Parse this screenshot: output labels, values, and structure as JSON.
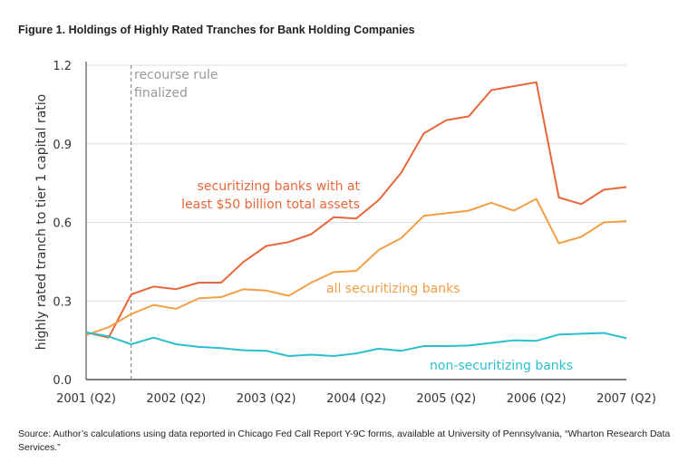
{
  "title": "Figure 1. Holdings of Highly Rated Tranches for Bank Holding Companies",
  "source": "Source: Author’s calculations using data reported in Chicago Fed Call Report Y-9C forms, available at University of Pennsylvania, “Wharton Research Data Services.”",
  "chart_data": {
    "type": "line",
    "ylabel": "highly rated tranch to tier 1 capital ratio",
    "xlabel": "",
    "ylim": [
      0,
      1.2
    ],
    "yticks": [
      "0.0",
      "0.3",
      "0.6",
      "0.9",
      "1.2"
    ],
    "xticks": [
      "2001 (Q2)",
      "2002 (Q2)",
      "2003 (Q2)",
      "2004 (Q2)",
      "2005 (Q2)",
      "2006 (Q2)",
      "2007 (Q2)"
    ],
    "x": [
      "2001Q2",
      "2001Q3",
      "2001Q4",
      "2002Q1",
      "2002Q2",
      "2002Q3",
      "2002Q4",
      "2003Q1",
      "2003Q2",
      "2003Q3",
      "2003Q4",
      "2004Q1",
      "2004Q2",
      "2004Q3",
      "2004Q4",
      "2005Q1",
      "2005Q2",
      "2005Q3",
      "2005Q4",
      "2006Q1",
      "2006Q2",
      "2006Q3",
      "2006Q4",
      "2007Q1",
      "2007Q2"
    ],
    "grid": "horizontal",
    "annotation": {
      "x": "2001Q4",
      "text_line1": "recourse rule",
      "text_line2": "finalized",
      "style": "dashed vertical line"
    },
    "series": [
      {
        "name_line1": "securitizing banks with at",
        "name_line2": "least $50 billion total assets",
        "color": "#e8673a",
        "values": [
          0.18,
          0.16,
          0.325,
          0.355,
          0.345,
          0.37,
          0.37,
          0.45,
          0.51,
          0.525,
          0.555,
          0.62,
          0.615,
          0.685,
          0.79,
          0.94,
          0.99,
          1.005,
          1.105,
          1.12,
          1.135,
          0.695,
          0.67,
          0.725,
          0.735
        ]
      },
      {
        "name": "all securitizing banks",
        "color": "#f29f45",
        "values": [
          0.17,
          0.2,
          0.25,
          0.285,
          0.27,
          0.31,
          0.315,
          0.345,
          0.34,
          0.32,
          0.37,
          0.41,
          0.415,
          0.495,
          0.54,
          0.625,
          0.635,
          0.645,
          0.675,
          0.645,
          0.69,
          0.52,
          0.545,
          0.6,
          0.605
        ]
      },
      {
        "name": "non-securitizing banks",
        "color": "#2bbfcc",
        "values": [
          0.18,
          0.165,
          0.135,
          0.16,
          0.135,
          0.125,
          0.12,
          0.112,
          0.11,
          0.09,
          0.095,
          0.09,
          0.1,
          0.118,
          0.11,
          0.128,
          0.128,
          0.13,
          0.14,
          0.15,
          0.148,
          0.172,
          0.175,
          0.178,
          0.158
        ]
      }
    ]
  }
}
